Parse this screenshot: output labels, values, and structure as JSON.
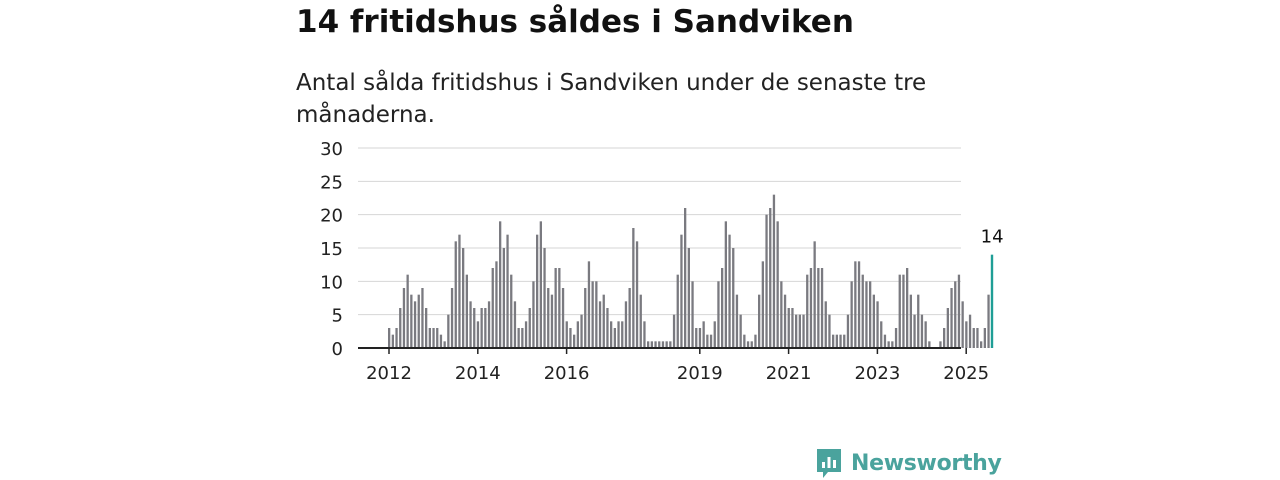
{
  "title": "14 fritidshus såldes i Sandviken",
  "subtitle": "Antal sålda fritidshus i Sandviken under de senaste tre månaderna.",
  "brand": {
    "name": "Newsworthy"
  },
  "colors": {
    "bar": "#7a7a80",
    "highlight": "#1f9e96",
    "grid": "#d6d6d6",
    "axis": "#222222",
    "brand": "#4aa39d"
  },
  "chart_data": {
    "type": "bar",
    "title": "",
    "xlabel": "",
    "ylabel": "",
    "ylim": [
      0,
      30
    ],
    "yticks": [
      0,
      5,
      10,
      15,
      20,
      25,
      30
    ],
    "xticks": [
      "2012",
      "2014",
      "2016",
      "2019",
      "2021",
      "2023",
      "2025"
    ],
    "grid": true,
    "annotation": {
      "label": "14",
      "value": 14,
      "target": "last bar"
    },
    "values": [
      3,
      2,
      3,
      6,
      9,
      11,
      8,
      7,
      8,
      9,
      6,
      3,
      3,
      3,
      2,
      1,
      5,
      9,
      16,
      17,
      15,
      11,
      7,
      6,
      4,
      6,
      6,
      7,
      12,
      13,
      19,
      15,
      17,
      11,
      7,
      3,
      3,
      4,
      6,
      10,
      17,
      19,
      15,
      9,
      8,
      12,
      12,
      9,
      4,
      3,
      2,
      4,
      5,
      9,
      13,
      10,
      10,
      7,
      8,
      6,
      4,
      3,
      4,
      4,
      7,
      9,
      18,
      16,
      8,
      4,
      1,
      1,
      1,
      1,
      1,
      1,
      1,
      5,
      11,
      17,
      21,
      15,
      10,
      3,
      3,
      4,
      2,
      2,
      4,
      10,
      12,
      19,
      17,
      15,
      8,
      5,
      2,
      1,
      1,
      2,
      8,
      13,
      20,
      21,
      23,
      19,
      10,
      8,
      6,
      6,
      5,
      5,
      5,
      11,
      12,
      16,
      12,
      12,
      7,
      5,
      2,
      2,
      2,
      2,
      5,
      10,
      13,
      13,
      11,
      10,
      10,
      8,
      7,
      4,
      2,
      1,
      1,
      3,
      11,
      11,
      12,
      8,
      5,
      8,
      5,
      4,
      1,
      0,
      0,
      1,
      3,
      6,
      9,
      10,
      11,
      7,
      4,
      5,
      3,
      3,
      1,
      3,
      8,
      14
    ]
  }
}
